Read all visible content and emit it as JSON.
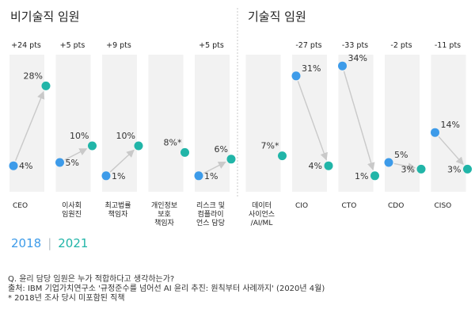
{
  "legend": {
    "year1": "2018",
    "separator": "|",
    "year2": "2021"
  },
  "notes": {
    "question": "Q. 윤리 담당 임원은 누가 적합하다고 생각하는가?",
    "source": "출처: IBM 기업가치연구소 '규정준수를 넘어선 AI 윤리 추진: 원칙부터 사례까지' (2020년 4월)",
    "footnote": "* 2018년 조사 당시 미포함된 직책"
  },
  "colors": {
    "y2018": "#3d9be9",
    "y2021": "#21b5a8",
    "column_bg": "#f2f2f2",
    "arrow": "#c9c9c9",
    "divider": "#c8c8c8"
  },
  "chart_data": {
    "type": "slope",
    "groups": [
      {
        "title": "비기술직 임원",
        "categories": [
          "CEO",
          "이사회 임원진",
          "최고법률 책임자",
          "개인정보 보호 책임자",
          "리스크 및 컴플라이언스 담당"
        ]
      },
      {
        "title": "기술직 임원",
        "categories": [
          "데이터 사이언스 /AI/ML",
          "CIO",
          "CTO",
          "CDO",
          "CISO"
        ]
      }
    ],
    "series_names": [
      "2018",
      "2021"
    ],
    "items": [
      {
        "category": "CEO",
        "label_lines": [
          "CEO"
        ],
        "y2018": 4,
        "y2021": 28,
        "label2018": "4%",
        "label2021": "28%",
        "delta": "+24 pts"
      },
      {
        "category": "이사회 임원진",
        "label_lines": [
          "이사회",
          "임원진"
        ],
        "y2018": 5,
        "y2021": 10,
        "label2018": "5%",
        "label2021": "10%",
        "delta": "+5 pts"
      },
      {
        "category": "최고법률 책임자",
        "label_lines": [
          "최고법률",
          "책임자"
        ],
        "y2018": 1,
        "y2021": 10,
        "label2018": "1%",
        "label2021": "10%",
        "delta": "+9 pts"
      },
      {
        "category": "개인정보 보호 책임자",
        "label_lines": [
          "개인정보",
          "보호",
          "책임자"
        ],
        "y2018": null,
        "y2021": 8,
        "label2018": "",
        "label2021": "8%*",
        "delta": ""
      },
      {
        "category": "리스크 및 컴플라이언스 담당",
        "label_lines": [
          "리스크 및",
          "컴플라이",
          "언스 담당"
        ],
        "y2018": 1,
        "y2021": 6,
        "label2018": "1%",
        "label2021": "6%",
        "delta": "+5 pts"
      },
      {
        "category": "데이터 사이언스 /AI/ML",
        "label_lines": [
          "데이터",
          "사이언스",
          "/AI/ML"
        ],
        "y2018": null,
        "y2021": 7,
        "label2018": "",
        "label2021": "7%*",
        "delta": ""
      },
      {
        "category": "CIO",
        "label_lines": [
          "CIO"
        ],
        "y2018": 31,
        "y2021": 4,
        "label2018": "31%",
        "label2021": "4%",
        "delta": "-27 pts"
      },
      {
        "category": "CTO",
        "label_lines": [
          "CTO"
        ],
        "y2018": 34,
        "y2021": 1,
        "label2018": "34%",
        "label2021": "1%",
        "delta": "-33 pts"
      },
      {
        "category": "CDO",
        "label_lines": [
          "CDO"
        ],
        "y2018": 5,
        "y2021": 3,
        "label2018": "5%",
        "label2021": "3%",
        "delta": "-2 pts"
      },
      {
        "category": "CISO",
        "label_lines": [
          "CISO"
        ],
        "y2018": 14,
        "y2021": 3,
        "label2018": "14%",
        "label2021": "3%",
        "delta": "-11 pts"
      }
    ]
  }
}
